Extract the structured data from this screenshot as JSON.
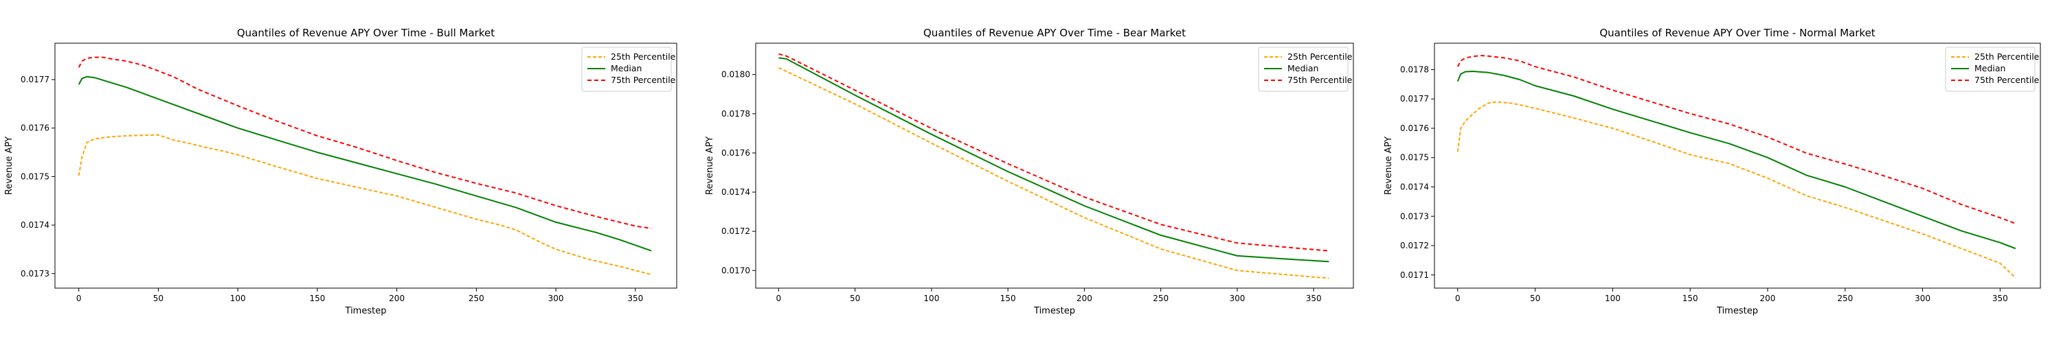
{
  "chart_data": [
    {
      "type": "line",
      "title": "Quantiles of Revenue APY Over Time - Bull Market",
      "xlabel": "Timestep",
      "ylabel": "Revenue APY",
      "xlim": [
        -15,
        376
      ],
      "ylim": [
        0.01727,
        0.017775
      ],
      "xticks": [
        0,
        50,
        100,
        150,
        200,
        250,
        300,
        350
      ],
      "yticks": [
        0.0173,
        0.0174,
        0.0175,
        0.0176,
        0.0177
      ],
      "grid": false,
      "legend_position": "top-right",
      "series": [
        {
          "name": "25th Percentile",
          "color": "#ffa500",
          "dash": "5,3",
          "x": [
            0,
            2,
            5,
            10,
            20,
            30,
            40,
            50,
            60,
            70,
            80,
            90,
            100,
            125,
            150,
            175,
            200,
            225,
            250,
            265,
            275,
            290,
            300,
            320,
            340,
            360
          ],
          "y": [
            0.017502,
            0.01754,
            0.01757,
            0.017578,
            0.017582,
            0.017584,
            0.017585,
            0.017586,
            0.017575,
            0.017568,
            0.01756,
            0.017553,
            0.017545,
            0.01752,
            0.017496,
            0.017478,
            0.01746,
            0.017436,
            0.017412,
            0.0174,
            0.01739,
            0.017365,
            0.01735,
            0.01733,
            0.017315,
            0.017298
          ]
        },
        {
          "name": "Median",
          "color": "#008000",
          "dash": "",
          "x": [
            0,
            2,
            5,
            10,
            20,
            30,
            40,
            50,
            60,
            75,
            100,
            125,
            150,
            175,
            200,
            225,
            250,
            275,
            300,
            325,
            340,
            360
          ],
          "y": [
            0.01769,
            0.017702,
            0.017706,
            0.017704,
            0.017694,
            0.017684,
            0.017672,
            0.01766,
            0.017648,
            0.01763,
            0.0176,
            0.017575,
            0.01755,
            0.017528,
            0.017506,
            0.017484,
            0.01746,
            0.017436,
            0.017406,
            0.017385,
            0.01737,
            0.017347
          ]
        },
        {
          "name": "75th Percentile",
          "color": "#ff0000",
          "dash": "6,4",
          "x": [
            0,
            2,
            5,
            10,
            15,
            20,
            30,
            40,
            50,
            60,
            75,
            100,
            125,
            150,
            175,
            200,
            225,
            250,
            275,
            300,
            325,
            350,
            360
          ],
          "y": [
            0.017725,
            0.017738,
            0.017744,
            0.017746,
            0.017746,
            0.017743,
            0.017738,
            0.01773,
            0.017718,
            0.017705,
            0.01768,
            0.017646,
            0.017614,
            0.017584,
            0.01756,
            0.017533,
            0.017508,
            0.017486,
            0.017466,
            0.01744,
            0.017418,
            0.017398,
            0.017393
          ]
        }
      ]
    },
    {
      "type": "line",
      "title": "Quantiles of Revenue APY Over Time - Bear Market",
      "xlabel": "Timestep",
      "ylabel": "Revenue APY",
      "xlim": [
        -15,
        376
      ],
      "ylim": [
        0.01691,
        0.01816
      ],
      "xticks": [
        0,
        50,
        100,
        150,
        200,
        250,
        300,
        350
      ],
      "yticks": [
        0.017,
        0.0172,
        0.0174,
        0.0176,
        0.0178,
        0.018
      ],
      "grid": false,
      "legend_position": "top-right",
      "series": [
        {
          "name": "25th Percentile",
          "color": "#ffa500",
          "dash": "5,3",
          "x": [
            0,
            50,
            100,
            150,
            200,
            250,
            300,
            330,
            360
          ],
          "y": [
            0.018035,
            0.01785,
            0.01765,
            0.017455,
            0.01727,
            0.01711,
            0.017,
            0.01698,
            0.01696
          ]
        },
        {
          "name": "Median",
          "color": "#008000",
          "dash": "",
          "x": [
            0,
            5,
            50,
            100,
            150,
            200,
            250,
            300,
            330,
            360
          ],
          "y": [
            0.018085,
            0.01808,
            0.017895,
            0.017695,
            0.017505,
            0.01733,
            0.01718,
            0.017075,
            0.01706,
            0.017045
          ]
        },
        {
          "name": "75th Percentile",
          "color": "#ff0000",
          "dash": "6,4",
          "x": [
            0,
            5,
            50,
            100,
            150,
            200,
            250,
            300,
            330,
            360
          ],
          "y": [
            0.018105,
            0.018095,
            0.01792,
            0.017725,
            0.017545,
            0.017375,
            0.017235,
            0.01714,
            0.01712,
            0.0171
          ]
        }
      ]
    },
    {
      "type": "line",
      "title": "Quantiles of Revenue APY Over Time - Normal Market",
      "xlabel": "Timestep",
      "ylabel": "Revenue APY",
      "xlim": [
        -15,
        376
      ],
      "ylim": [
        0.017055,
        0.01789
      ],
      "xticks": [
        0,
        50,
        100,
        150,
        200,
        250,
        300,
        350
      ],
      "yticks": [
        0.0171,
        0.0172,
        0.0173,
        0.0174,
        0.0175,
        0.0176,
        0.0177,
        0.0178
      ],
      "grid": false,
      "legend_position": "top-right",
      "series": [
        {
          "name": "25th Percentile",
          "color": "#ffa500",
          "dash": "5,3",
          "x": [
            0,
            2,
            5,
            10,
            15,
            20,
            25,
            30,
            35,
            40,
            50,
            60,
            75,
            100,
            125,
            150,
            175,
            200,
            225,
            250,
            275,
            300,
            325,
            350,
            360
          ],
          "y": [
            0.01752,
            0.0176,
            0.017625,
            0.01765,
            0.017672,
            0.017686,
            0.01769,
            0.017688,
            0.017685,
            0.01768,
            0.017668,
            0.017655,
            0.017635,
            0.0176,
            0.017556,
            0.01751,
            0.01748,
            0.01743,
            0.01737,
            0.01733,
            0.017285,
            0.01724,
            0.01719,
            0.01714,
            0.01709
          ]
        },
        {
          "name": "Median",
          "color": "#008000",
          "dash": "",
          "x": [
            0,
            2,
            5,
            10,
            20,
            30,
            40,
            50,
            75,
            100,
            125,
            150,
            175,
            200,
            225,
            250,
            275,
            300,
            325,
            350,
            360
          ],
          "y": [
            0.01776,
            0.017785,
            0.017793,
            0.017794,
            0.01779,
            0.01778,
            0.017766,
            0.017745,
            0.01771,
            0.017665,
            0.017625,
            0.017585,
            0.017548,
            0.0175,
            0.01744,
            0.0174,
            0.01735,
            0.0173,
            0.01725,
            0.01721,
            0.01719
          ]
        },
        {
          "name": "75th Percentile",
          "color": "#ff0000",
          "dash": "6,4",
          "x": [
            0,
            2,
            5,
            10,
            15,
            20,
            30,
            40,
            50,
            75,
            100,
            125,
            150,
            175,
            200,
            225,
            250,
            275,
            300,
            325,
            350,
            360
          ],
          "y": [
            0.01781,
            0.01783,
            0.01784,
            0.017845,
            0.017848,
            0.017846,
            0.01784,
            0.01783,
            0.01781,
            0.017775,
            0.01773,
            0.01769,
            0.01765,
            0.017615,
            0.01757,
            0.017515,
            0.017478,
            0.017438,
            0.017395,
            0.01734,
            0.017295,
            0.017275
          ]
        }
      ]
    }
  ]
}
